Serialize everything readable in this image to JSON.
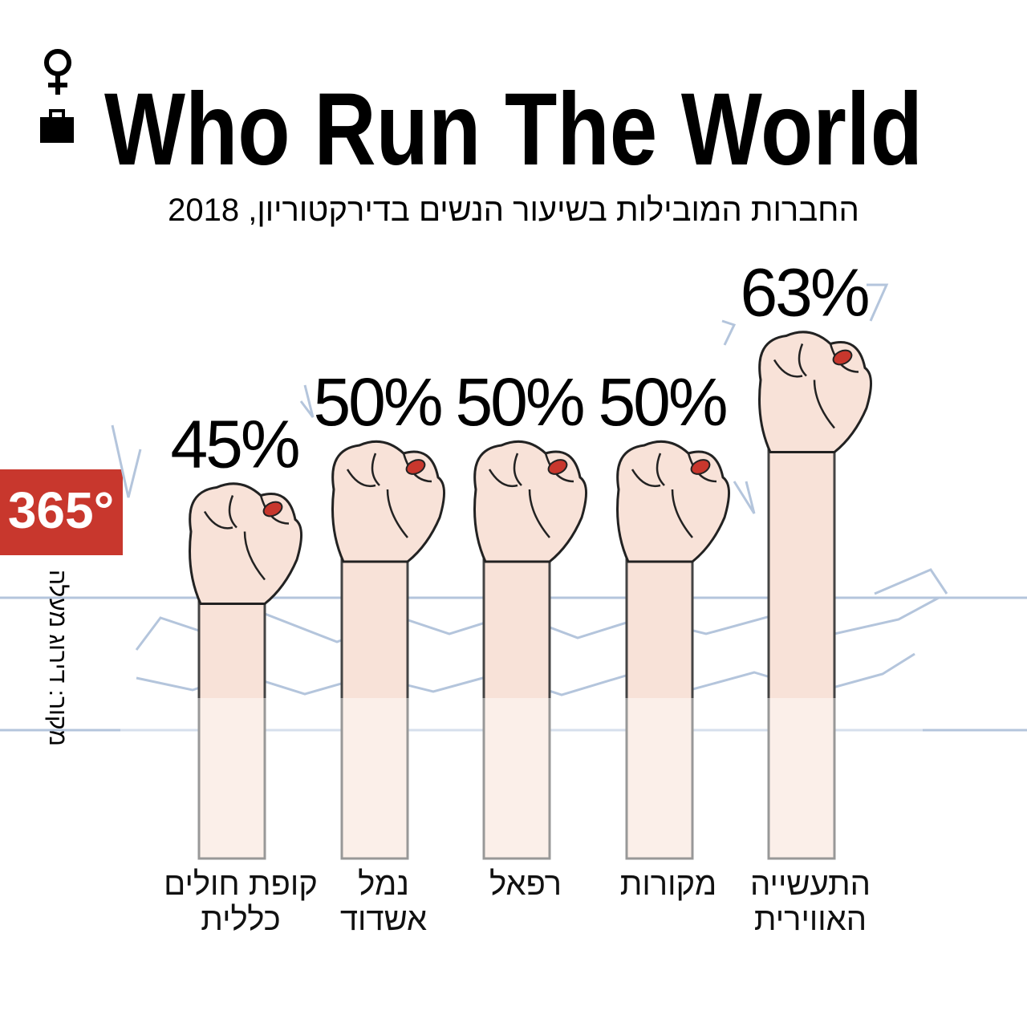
{
  "chart_data": {
    "type": "bar",
    "title": "Who Run The World",
    "subtitle": "החברות המובילות בשיעור הנשים בדירקטוריון, 2018",
    "source": "מקור: דירוג מעלה",
    "logo": "365°",
    "categories": [
      "קופת חולים\nכללית",
      "נמל\nאשדוד",
      "רפאל",
      "מקורות",
      "התעשייה\nהאווירית"
    ],
    "values": [
      45,
      50,
      50,
      50,
      63
    ],
    "value_labels": [
      "45%",
      "50%",
      "50%",
      "50%",
      "63%"
    ],
    "color": "#f8e2d8"
  }
}
